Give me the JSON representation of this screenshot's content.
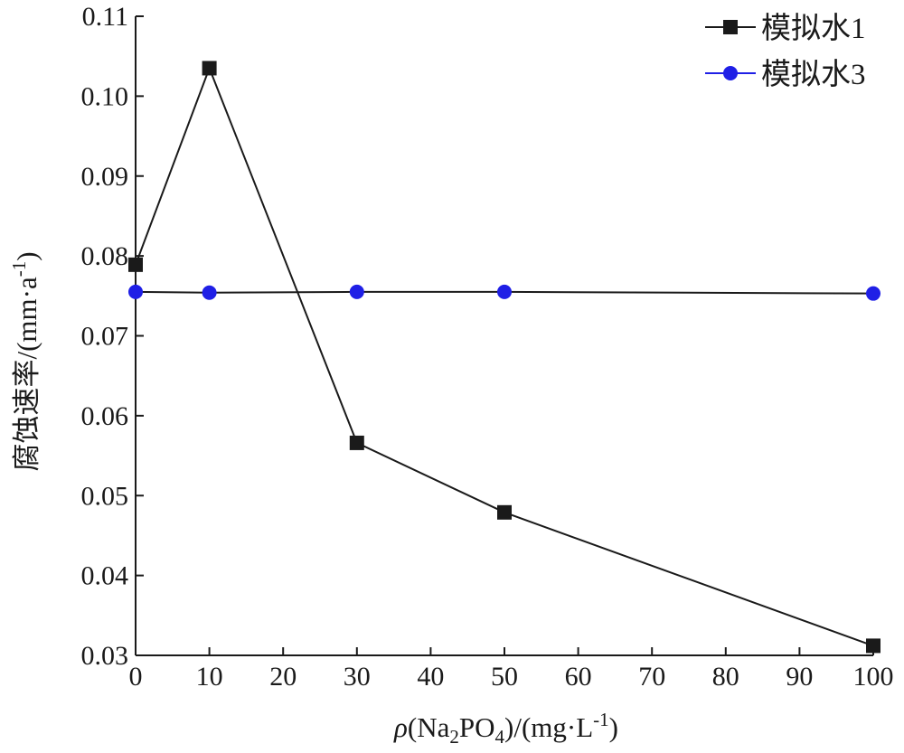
{
  "chart_data": {
    "type": "line",
    "x": [
      0,
      10,
      30,
      50,
      100
    ],
    "xlim": [
      0,
      100
    ],
    "ylim": [
      0.03,
      0.11
    ],
    "x_ticks": [
      "0",
      "10",
      "20",
      "30",
      "40",
      "50",
      "60",
      "70",
      "80",
      "90",
      "100"
    ],
    "y_ticks": [
      "0.03",
      "0.04",
      "0.05",
      "0.06",
      "0.07",
      "0.08",
      "0.09",
      "0.10",
      "0.11"
    ],
    "xlabel": {
      "prefix": "ρ",
      "a": "(Na",
      "sub1": "2",
      "b": "PO",
      "sub2": "4",
      "c": ")/(mg·L",
      "sup": "-1",
      "d": ")"
    },
    "ylabel": {
      "a": "腐蚀速率/(mm·a",
      "sup": "-1",
      "b": ")"
    },
    "legend_position": "top-right",
    "series": [
      {
        "name": "模拟水1",
        "marker": "square",
        "color": "#1a1a1a",
        "values": [
          0.0789,
          0.1035,
          0.0566,
          0.0479,
          0.0312
        ]
      },
      {
        "name": "模拟水3",
        "marker": "circle",
        "color": "#1f1fe6",
        "values": [
          0.0755,
          0.0754,
          0.0755,
          0.0755,
          0.0753
        ]
      }
    ]
  }
}
